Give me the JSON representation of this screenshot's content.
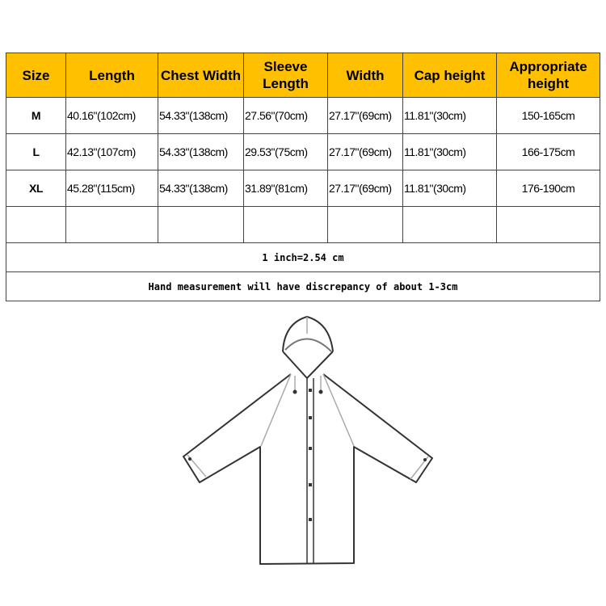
{
  "table": {
    "headers": [
      "Size",
      "Length",
      "Chest Width",
      "Sleeve Length",
      "Width",
      "Cap height",
      "Appropriate height"
    ],
    "rows": [
      [
        "M",
        "40.16\"(102cm)",
        "54.33\"(138cm)",
        "27.56\"(70cm)",
        "27.17\"(69cm)",
        "11.81\"(30cm)",
        "150-165cm"
      ],
      [
        "L",
        "42.13\"(107cm)",
        "54.33\"(138cm)",
        "29.53\"(75cm)",
        "27.17\"(69cm)",
        "11.81\"(30cm)",
        "166-175cm"
      ],
      [
        "XL",
        "45.28\"(115cm)",
        "54.33\"(138cm)",
        "31.89\"(81cm)",
        "27.17\"(69cm)",
        "11.81\"(30cm)",
        "176-190cm"
      ]
    ],
    "notes": [
      "1 inch=2.54 cm",
      "Hand measurement will have discrepancy of about 1-3cm"
    ],
    "header_color": "#ffc000"
  },
  "illustration": {
    "icon": "raincoat-line-drawing-icon"
  }
}
